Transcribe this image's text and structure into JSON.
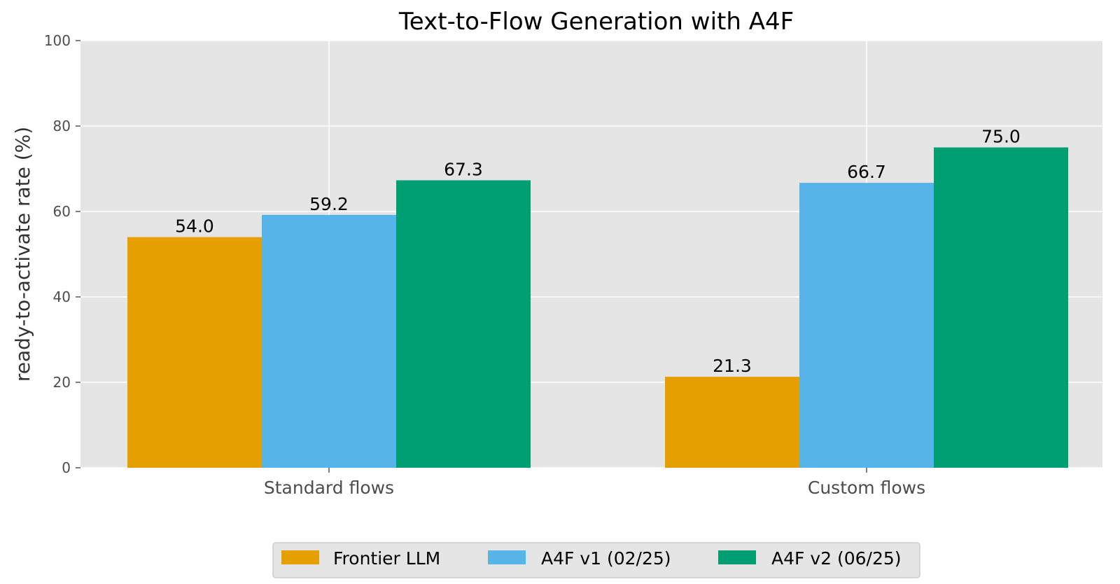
{
  "chart_data": {
    "type": "bar",
    "title": "Text-to-Flow Generation with A4F",
    "xlabel": "",
    "ylabel": "ready-to-activate rate (%)",
    "categories": [
      "Standard flows",
      "Custom flows"
    ],
    "series": [
      {
        "name": "Frontier LLM",
        "values": [
          54.0,
          21.3
        ],
        "color": "#E69F00"
      },
      {
        "name": "A4F v1 (02/25)",
        "values": [
          59.2,
          66.7
        ],
        "color": "#56B4E9"
      },
      {
        "name": "A4F v2 (06/25)",
        "values": [
          67.3,
          75.0
        ],
        "color": "#009E73"
      }
    ],
    "data_labels": [
      [
        "54.0",
        "21.3"
      ],
      [
        "59.2",
        "66.7"
      ],
      [
        "67.3",
        "75.0"
      ]
    ],
    "ylim": [
      0,
      100
    ],
    "yticks": [
      0,
      20,
      40,
      60,
      80,
      100
    ],
    "grid": true,
    "legend_position": "bottom-center",
    "colors": {
      "plot_background": "#E5E5E5",
      "grid": "#FFFFFF",
      "text": "#000000",
      "tick_text": "#4D4D4D"
    }
  }
}
